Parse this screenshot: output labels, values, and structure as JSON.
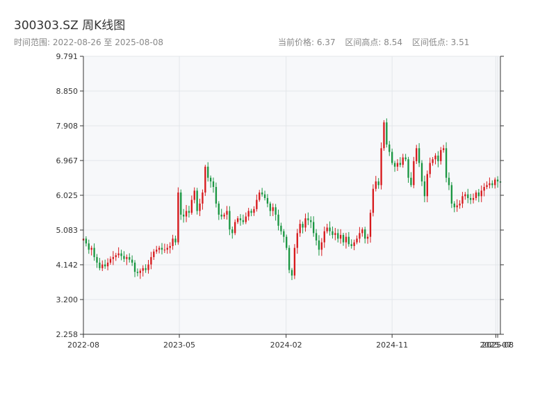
{
  "header": {
    "title": "300303.SZ 周K线图",
    "range_label": "时间范围: 2022-08-26 至 2025-08-08",
    "current_price_label": "当前价格: 6.37",
    "high_label": "区间高点: 8.54",
    "low_label": "区间低点: 3.51"
  },
  "colors": {
    "up": "#d7191c",
    "down": "#1a9641",
    "plot_bg": "#f7f8fa",
    "grid": "#e3e6ea"
  },
  "chart_data": {
    "type": "candlestick",
    "title": "300303.SZ 周K线图",
    "xlabel": "",
    "ylabel": "",
    "grid": true,
    "ylim": [
      2.258,
      9.791
    ],
    "ytick_labels": [
      "2.258",
      "3.200",
      "4.142",
      "5.083",
      "6.025",
      "6.967",
      "7.908",
      "8.850",
      "9.791"
    ],
    "xlim": [
      "2022-08-26",
      "2025-08-08"
    ],
    "xtick_labels": [
      {
        "date": "2022-08-01",
        "label": "2022-08"
      },
      {
        "date": "2023-05-01",
        "label": "2023-05"
      },
      {
        "date": "2024-02-01",
        "label": "2024-02"
      },
      {
        "date": "2024-11-01",
        "label": "2024-11"
      },
      {
        "date": "2025-07-27",
        "label": "2025-07"
      },
      {
        "date": "2025-08-01",
        "label": "2025-08"
      }
    ],
    "weeks": 155,
    "close": [
      4.85,
      4.72,
      4.55,
      4.6,
      4.35,
      4.2,
      4.05,
      4.15,
      4.1,
      4.2,
      4.3,
      4.35,
      4.4,
      4.45,
      4.38,
      4.3,
      4.35,
      4.28,
      4.2,
      3.95,
      3.92,
      3.98,
      4.05,
      4.0,
      4.15,
      4.35,
      4.5,
      4.55,
      4.6,
      4.55,
      4.55,
      4.6,
      4.65,
      4.85,
      4.75,
      6.1,
      5.5,
      5.45,
      5.6,
      5.55,
      5.9,
      6.15,
      5.6,
      5.8,
      6.1,
      6.8,
      6.5,
      6.4,
      6.25,
      5.8,
      5.5,
      5.45,
      5.5,
      5.6,
      5.1,
      5.0,
      5.3,
      5.4,
      5.35,
      5.3,
      5.45,
      5.6,
      5.55,
      5.65,
      5.9,
      6.1,
      6.05,
      5.95,
      5.8,
      5.6,
      5.7,
      5.5,
      5.2,
      5.05,
      4.9,
      4.6,
      4.0,
      3.85,
      4.6,
      5.0,
      5.25,
      5.15,
      5.4,
      5.35,
      5.3,
      5.0,
      4.8,
      4.55,
      4.75,
      5.05,
      5.15,
      5.05,
      4.95,
      5.0,
      4.85,
      4.95,
      4.75,
      4.9,
      4.7,
      4.65,
      4.75,
      4.85,
      5.0,
      5.1,
      4.85,
      4.9,
      5.55,
      6.2,
      6.4,
      6.3,
      7.3,
      8.0,
      7.4,
      7.2,
      6.9,
      6.8,
      6.9,
      6.85,
      7.05,
      7.0,
      6.5,
      6.3,
      6.95,
      7.3,
      6.9,
      6.4,
      6.0,
      6.6,
      6.9,
      7.0,
      7.1,
      6.95,
      7.25,
      7.3,
      6.5,
      6.3,
      5.8,
      5.7,
      5.75,
      5.8,
      6.0,
      6.05,
      5.95,
      5.9,
      5.95,
      6.1,
      6.0,
      6.15,
      6.25,
      6.3,
      6.35,
      6.3,
      6.45,
      6.4,
      6.37
    ]
  }
}
